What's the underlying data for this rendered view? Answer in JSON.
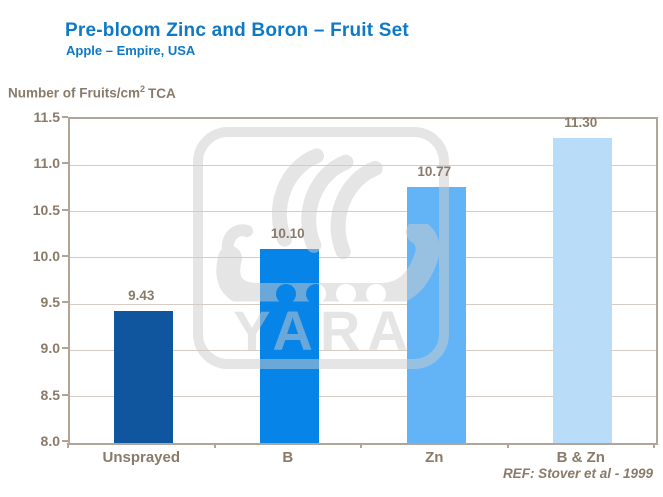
{
  "header": {
    "title": "Pre-bloom Zinc and Boron – Fruit Set",
    "subtitle": "Apple – Empire, USA"
  },
  "axis_title": {
    "prefix": "Number of Fruits/cm",
    "sup": "2",
    "suffix": "TCA"
  },
  "footer": {
    "ref": "REF: Stover et al - 1999"
  },
  "watermark": {
    "name": "yara-logo",
    "text": "YARA",
    "color": "#cccccc"
  },
  "colors": {
    "title_blue": "#0e7ac6",
    "label_brown": "#8a7a6a",
    "axis_border": "#b2a496",
    "gridline": "#d6ccc1"
  },
  "chart_data": {
    "type": "bar",
    "categories": [
      "Unsprayed",
      "B",
      "Zn",
      "B & Zn"
    ],
    "values": [
      9.43,
      10.1,
      10.77,
      11.3
    ],
    "value_labels": [
      "9.43",
      "10.10",
      "10.77",
      "11.30"
    ],
    "bar_colors": [
      "#0f569e",
      "#0784e8",
      "#62b4f7",
      "#b9dcf8"
    ],
    "title": "Pre-bloom Zinc and Boron – Fruit Set",
    "subtitle": "Apple – Empire, USA",
    "ylabel": "Number of Fruits/cm2 TCA",
    "xlabel": "",
    "ylim": [
      8.0,
      11.5
    ],
    "ytick_step": 0.5,
    "yticks": [
      11.5,
      11.0,
      10.5,
      10.0,
      9.5,
      9.0,
      8.5,
      8.0
    ],
    "grid": true,
    "legend": false,
    "source": "REF: Stover et al - 1999"
  }
}
